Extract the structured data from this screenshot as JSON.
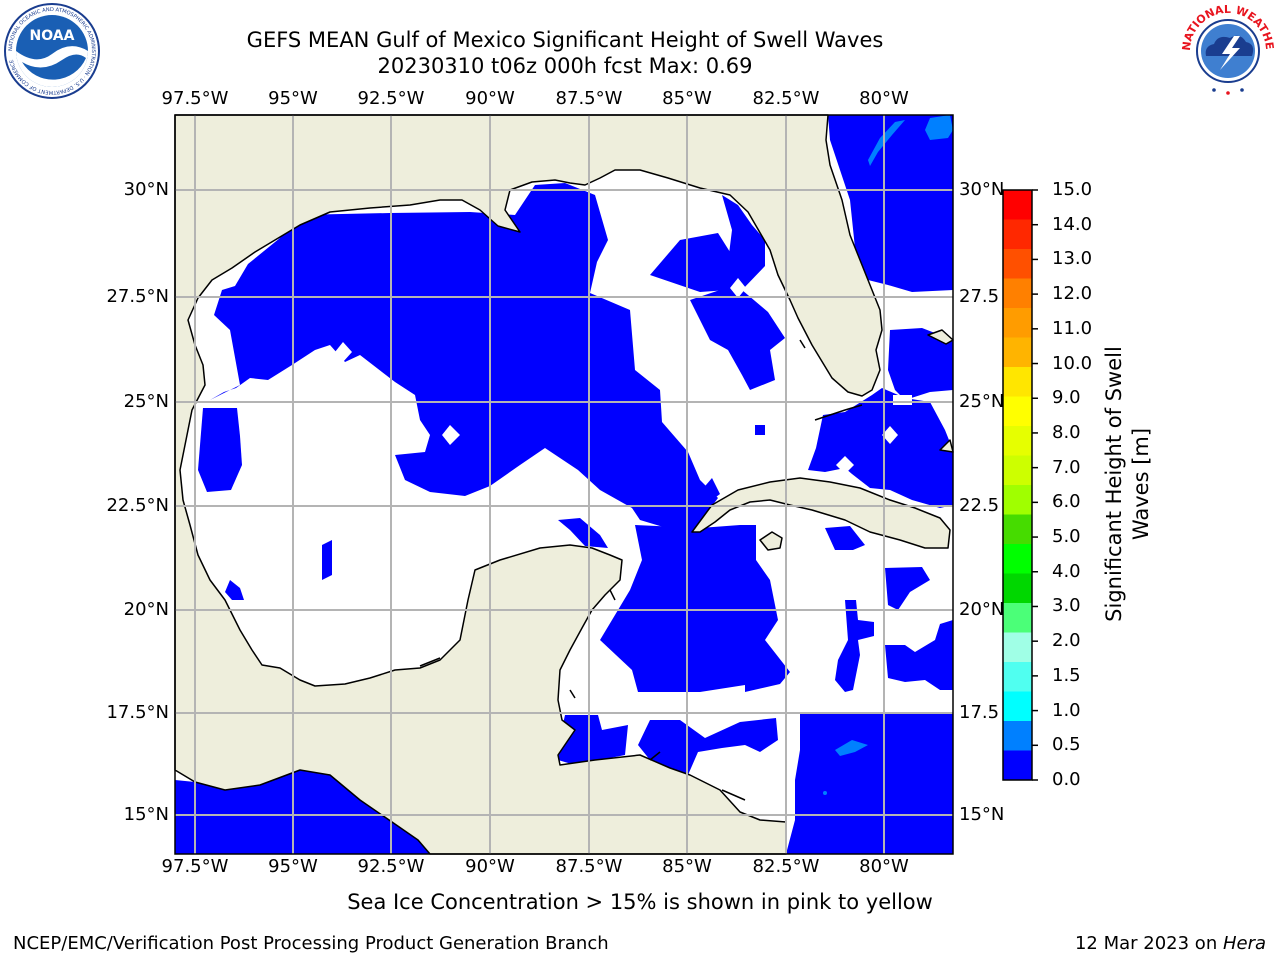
{
  "title": "GEFS MEAN Gulf of Mexico Significant Height of Swell Waves",
  "subtitle": "20230310 t06z 000h fcst   Max: 0.69",
  "logos": {
    "left_text": "NOAA",
    "left_ring_text": "NATIONAL OCEANIC AND ATMOSPHERIC ADMINISTRATION · U.S. DEPARTMENT OF COMMERCE",
    "right_ring_text": "NATIONAL WEATHER SERVICE"
  },
  "map": {
    "lon_labels": [
      "97.5°W",
      "95°W",
      "92.5°W",
      "90°W",
      "87.5°W",
      "85°W",
      "82.5°W",
      "80°W"
    ],
    "lat_labels_left": [
      "30°N",
      "27.5°N",
      "25°N",
      "22.5°N",
      "20°N",
      "17.5°N",
      "15°N"
    ],
    "lat_labels_right": [
      "30°N",
      "27.5",
      "25°N",
      "22.5",
      "20°N",
      "17.5",
      "15°N"
    ],
    "colors": {
      "land": "#eeeedc",
      "ocean_zero": "#0000ff",
      "ocean_blank": "#ffffff",
      "grid": "#b4b4b4"
    }
  },
  "colorbar": {
    "label": "Significant Height of Swell Waves [m]",
    "ticks": [
      "15.0",
      "14.0",
      "13.0",
      "12.0",
      "11.0",
      "10.0",
      "9.0",
      "8.0",
      "7.0",
      "6.0",
      "5.0",
      "4.0",
      "3.0",
      "2.0",
      "1.5",
      "1.0",
      "0.5",
      "0.0"
    ],
    "colors": [
      "#ff0000",
      "#ff2800",
      "#ff5000",
      "#ff8000",
      "#ff9c00",
      "#ffb400",
      "#ffe600",
      "#ffff00",
      "#e6ff00",
      "#cdff00",
      "#a0ff00",
      "#46dc00",
      "#00ff00",
      "#00d700",
      "#4bff78",
      "#a0ffe6",
      "#50fff0",
      "#00ffff",
      "#0080ff",
      "#0000ff"
    ]
  },
  "footer": {
    "note": "Sea Ice Concentration > 15% is shown in pink to yellow",
    "left": "NCEP/EMC/Verification Post Processing Product Generation Branch",
    "date": "12 Mar 2023 on ",
    "host": "Hera"
  }
}
